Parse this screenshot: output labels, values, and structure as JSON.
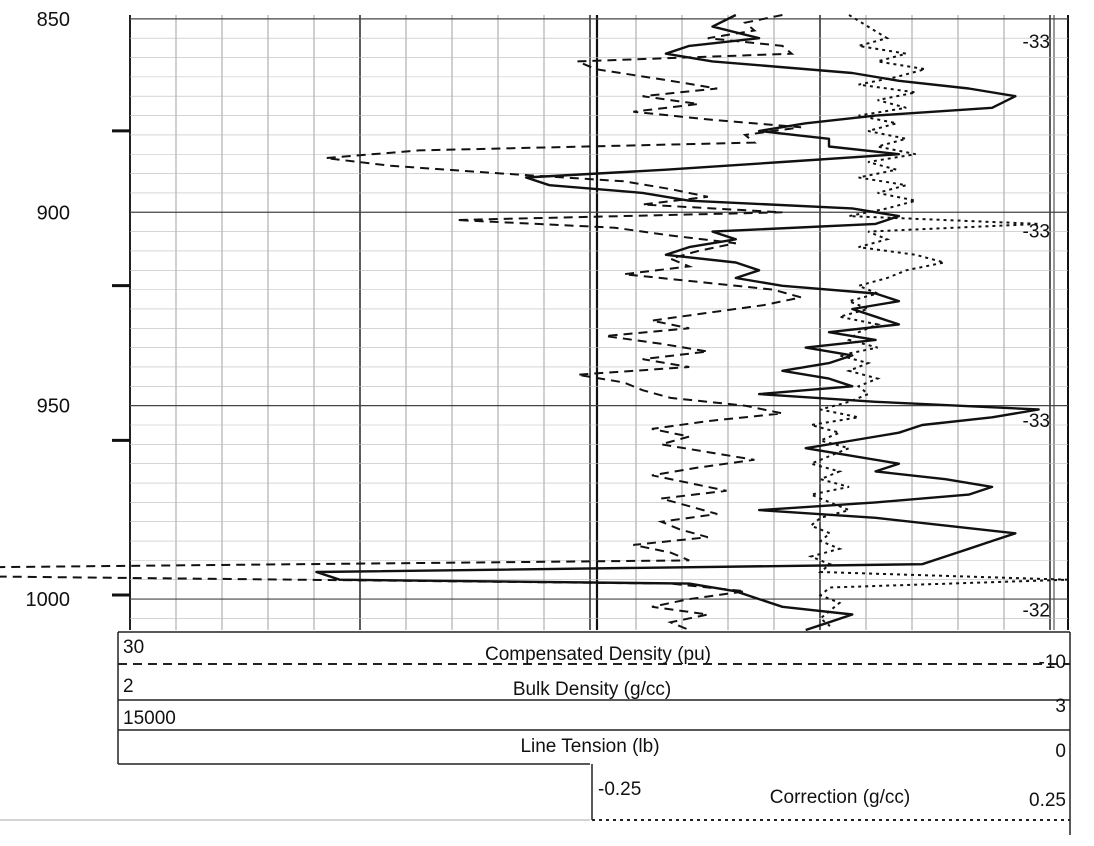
{
  "chart_data": {
    "type": "line",
    "depth_axis": {
      "ticks": [
        850,
        900,
        950,
        1000
      ],
      "range": [
        849,
        1008
      ]
    },
    "right_track_labels": [
      {
        "text": "-33",
        "depth": 856
      },
      {
        "text": "-33",
        "depth": 905
      },
      {
        "text": "-33",
        "depth": 954
      },
      {
        "text": "-32",
        "depth": 1003
      }
    ],
    "tracks": [
      {
        "name": "Compensated Density (pu)",
        "left": "30",
        "right": "-10",
        "line_style": "solid"
      },
      {
        "name": "Bulk Density (g/cc)",
        "left": "2",
        "right": "3",
        "line_style": "dashed"
      },
      {
        "name": "Line Tension (lb)",
        "left": "15000",
        "right": "0",
        "line_style": "solid"
      },
      {
        "name": "Correction (g/cc)",
        "left": "-0.25",
        "right": "0.25",
        "line_style": "dotted"
      }
    ],
    "series": [
      {
        "name": "Compensated Density (pu)",
        "scale": [
          30,
          -10
        ],
        "points": [
          [
            849,
            4
          ],
          [
            852,
            5
          ],
          [
            855,
            3
          ],
          [
            857,
            6
          ],
          [
            859,
            7
          ],
          [
            861,
            5
          ],
          [
            864,
            -1
          ],
          [
            866,
            -3
          ],
          [
            868,
            -6
          ],
          [
            870,
            -8
          ],
          [
            873,
            -7
          ],
          [
            875,
            -2
          ],
          [
            877,
            1
          ],
          [
            879,
            3
          ],
          [
            881,
            0
          ],
          [
            883,
            0
          ],
          [
            885,
            -3
          ],
          [
            887,
            2
          ],
          [
            889,
            7
          ],
          [
            891,
            13
          ],
          [
            893,
            12
          ],
          [
            895,
            8
          ],
          [
            897,
            6
          ],
          [
            899,
            -1
          ],
          [
            901,
            -3
          ],
          [
            903,
            -2
          ],
          [
            905,
            5
          ],
          [
            907,
            4
          ],
          [
            909,
            6
          ],
          [
            911,
            7
          ],
          [
            913,
            4
          ],
          [
            915,
            3
          ],
          [
            917,
            4
          ],
          [
            919,
            2
          ],
          [
            921,
            -2
          ],
          [
            923,
            -3
          ],
          [
            925,
            -1
          ],
          [
            927,
            -2
          ],
          [
            929,
            -3
          ],
          [
            931,
            0
          ],
          [
            933,
            -2
          ],
          [
            935,
            1
          ],
          [
            937,
            -1
          ],
          [
            939,
            0
          ],
          [
            941,
            2
          ],
          [
            943,
            0
          ],
          [
            945,
            -1
          ],
          [
            947,
            3
          ],
          [
            949,
            -2
          ],
          [
            951,
            -9
          ],
          [
            953,
            -7
          ],
          [
            955,
            -4
          ],
          [
            957,
            -3
          ],
          [
            959,
            -1
          ],
          [
            961,
            1
          ],
          [
            963,
            -1
          ],
          [
            965,
            -3
          ],
          [
            967,
            -2
          ],
          [
            969,
            -5
          ],
          [
            971,
            -7
          ],
          [
            973,
            -6
          ],
          [
            975,
            -2
          ],
          [
            977,
            3
          ],
          [
            979,
            -2
          ],
          [
            981,
            -5
          ],
          [
            983,
            -8
          ],
          [
            985,
            -7
          ],
          [
            987,
            -6
          ],
          [
            989,
            -5
          ],
          [
            991,
            -4
          ],
          [
            993,
            22
          ],
          [
            995,
            21
          ],
          [
            996,
            6
          ],
          [
            998,
            4
          ],
          [
            1000,
            3
          ],
          [
            1002,
            2
          ],
          [
            1004,
            -1
          ],
          [
            1006,
            0
          ],
          [
            1008,
            1
          ]
        ]
      },
      {
        "name": "Bulk Density (g/cc)",
        "scale": [
          2,
          3
        ],
        "points": [
          [
            849,
            2.7
          ],
          [
            851,
            2.66
          ],
          [
            853,
            2.67
          ],
          [
            855,
            2.62
          ],
          [
            857,
            2.7
          ],
          [
            859,
            2.71
          ],
          [
            861,
            2.48
          ],
          [
            863,
            2.5
          ],
          [
            866,
            2.58
          ],
          [
            868,
            2.63
          ],
          [
            870,
            2.55
          ],
          [
            872,
            2.61
          ],
          [
            874,
            2.54
          ],
          [
            876,
            2.62
          ],
          [
            878,
            2.72
          ],
          [
            880,
            2.66
          ],
          [
            882,
            2.67
          ],
          [
            884,
            2.31
          ],
          [
            886,
            2.21
          ],
          [
            888,
            2.28
          ],
          [
            890,
            2.4
          ],
          [
            892,
            2.53
          ],
          [
            894,
            2.58
          ],
          [
            896,
            2.62
          ],
          [
            898,
            2.55
          ],
          [
            900,
            2.7
          ],
          [
            902,
            2.35
          ],
          [
            904,
            2.52
          ],
          [
            906,
            2.58
          ],
          [
            908,
            2.65
          ],
          [
            910,
            2.61
          ],
          [
            912,
            2.58
          ],
          [
            914,
            2.6
          ],
          [
            916,
            2.53
          ],
          [
            918,
            2.61
          ],
          [
            920,
            2.69
          ],
          [
            922,
            2.72
          ],
          [
            924,
            2.68
          ],
          [
            926,
            2.62
          ],
          [
            928,
            2.56
          ],
          [
            930,
            2.6
          ],
          [
            932,
            2.51
          ],
          [
            934,
            2.57
          ],
          [
            936,
            2.62
          ],
          [
            938,
            2.55
          ],
          [
            940,
            2.6
          ],
          [
            942,
            2.48
          ],
          [
            944,
            2.53
          ],
          [
            946,
            2.55
          ],
          [
            948,
            2.58
          ],
          [
            950,
            2.66
          ],
          [
            952,
            2.7
          ],
          [
            954,
            2.62
          ],
          [
            956,
            2.56
          ],
          [
            958,
            2.6
          ],
          [
            960,
            2.57
          ],
          [
            962,
            2.62
          ],
          [
            964,
            2.67
          ],
          [
            966,
            2.61
          ],
          [
            968,
            2.56
          ],
          [
            970,
            2.6
          ],
          [
            972,
            2.64
          ],
          [
            974,
            2.57
          ],
          [
            976,
            2.6
          ],
          [
            978,
            2.63
          ],
          [
            980,
            2.57
          ],
          [
            982,
            2.59
          ],
          [
            984,
            2.62
          ],
          [
            986,
            2.54
          ],
          [
            988,
            2.58
          ],
          [
            990,
            2.6
          ],
          [
            992,
            1.75
          ],
          [
            994,
            1.78
          ],
          [
            996,
            2.58
          ],
          [
            998,
            2.66
          ],
          [
            1000,
            2.6
          ],
          [
            1002,
            2.56
          ],
          [
            1004,
            2.62
          ],
          [
            1006,
            2.58
          ],
          [
            1008,
            2.6
          ]
        ]
      },
      {
        "name": "Correction (g/cc)",
        "scale": [
          -0.25,
          0.25
        ],
        "points": [
          [
            849,
            0.02
          ],
          [
            852,
            0.04
          ],
          [
            855,
            0.06
          ],
          [
            857,
            0.03
          ],
          [
            859,
            0.08
          ],
          [
            861,
            0.05
          ],
          [
            863,
            0.1
          ],
          [
            865,
            0.07
          ],
          [
            867,
            0.03
          ],
          [
            869,
            0.09
          ],
          [
            871,
            0.05
          ],
          [
            873,
            0.08
          ],
          [
            875,
            0.03
          ],
          [
            877,
            0.07
          ],
          [
            879,
            0.04
          ],
          [
            881,
            0.08
          ],
          [
            883,
            0.05
          ],
          [
            885,
            0.09
          ],
          [
            887,
            0.04
          ],
          [
            889,
            0.07
          ],
          [
            891,
            0.03
          ],
          [
            893,
            0.08
          ],
          [
            895,
            0.05
          ],
          [
            897,
            0.09
          ],
          [
            899,
            0.06
          ],
          [
            901,
            0.02
          ],
          [
            903,
            0.22
          ],
          [
            905,
            0.04
          ],
          [
            907,
            0.06
          ],
          [
            909,
            0.03
          ],
          [
            911,
            0.09
          ],
          [
            913,
            0.12
          ],
          [
            915,
            0.08
          ],
          [
            917,
            0.06
          ],
          [
            919,
            0.03
          ],
          [
            921,
            0.05
          ],
          [
            923,
            0.02
          ],
          [
            925,
            0.04
          ],
          [
            927,
            0.01
          ],
          [
            929,
            0.05
          ],
          [
            931,
            0.03
          ],
          [
            933,
            0.02
          ],
          [
            935,
            0.05
          ],
          [
            937,
            0.01
          ],
          [
            939,
            0.04
          ],
          [
            941,
            0.02
          ],
          [
            943,
            0.05
          ],
          [
            945,
            0.03
          ],
          [
            947,
            0.04
          ],
          [
            949,
            0.02
          ],
          [
            951,
            -0.01
          ],
          [
            953,
            0.03
          ],
          [
            955,
            -0.02
          ],
          [
            957,
            0.01
          ],
          [
            959,
            -0.01
          ],
          [
            961,
            0.02
          ],
          [
            963,
            0.0
          ],
          [
            965,
            -0.02
          ],
          [
            967,
            0.01
          ],
          [
            969,
            -0.01
          ],
          [
            971,
            0.02
          ],
          [
            973,
            -0.02
          ],
          [
            975,
            0.0
          ],
          [
            977,
            0.02
          ],
          [
            979,
            -0.01
          ],
          [
            981,
            -0.02
          ],
          [
            983,
            0.0
          ],
          [
            985,
            -0.01
          ],
          [
            987,
            0.01
          ],
          [
            989,
            -0.02
          ],
          [
            991,
            0.0
          ],
          [
            993,
            -0.01
          ],
          [
            995,
            0.25
          ],
          [
            997,
            0.0
          ],
          [
            999,
            -0.01
          ],
          [
            1001,
            0.01
          ],
          [
            1003,
            0.0
          ],
          [
            1005,
            -0.01
          ],
          [
            1007,
            0.0
          ]
        ]
      }
    ]
  }
}
